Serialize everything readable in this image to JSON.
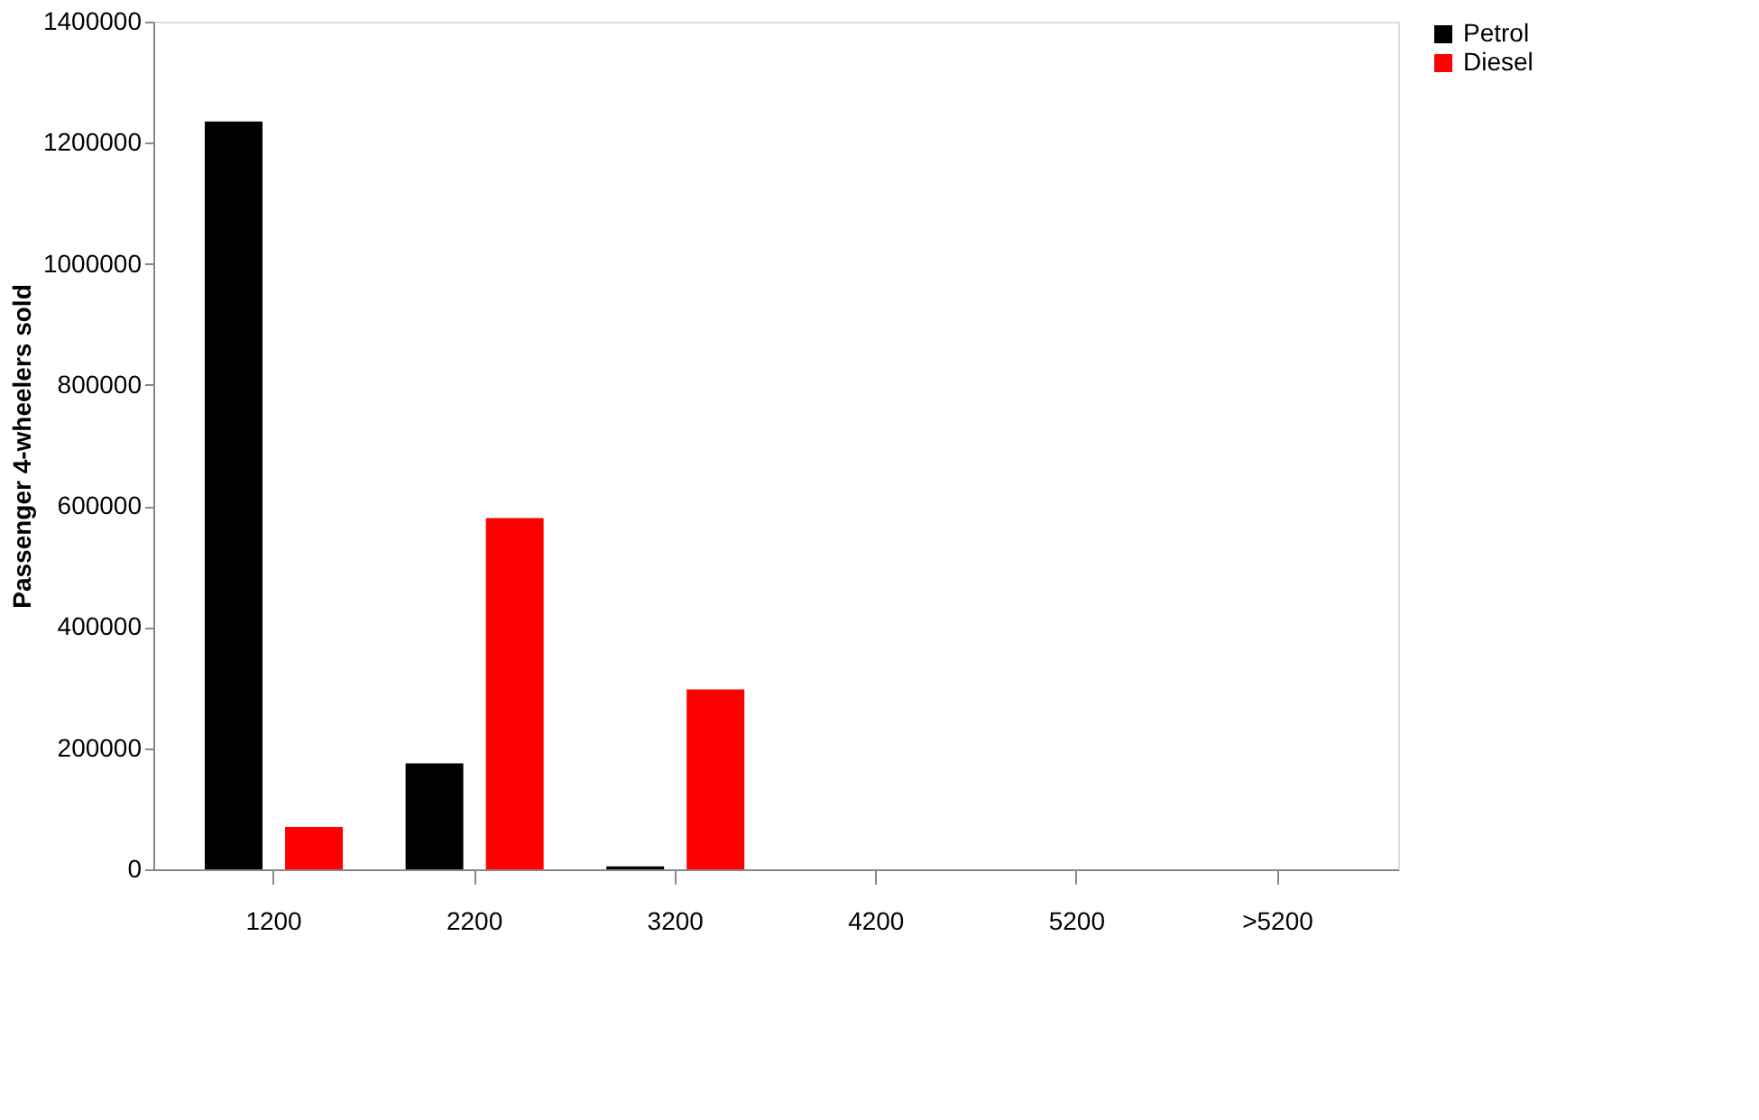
{
  "chart_data": {
    "type": "bar",
    "ylabel": "Passenger 4-wheelers sold",
    "categories": [
      "1200",
      "2200",
      "3200",
      "4200",
      "5200",
      ">5200"
    ],
    "series": [
      {
        "name": "Petrol",
        "color": "#000000",
        "values": [
          1235000,
          175000,
          5000,
          0,
          0,
          0
        ]
      },
      {
        "name": "Diesel",
        "color": "#ff0000",
        "values": [
          70000,
          580000,
          297000,
          0,
          0,
          0
        ]
      }
    ],
    "ylim": [
      0,
      1400000
    ],
    "yticks": [
      0,
      200000,
      400000,
      600000,
      800000,
      1000000,
      1200000,
      1400000
    ],
    "grid": false,
    "legend": "right"
  }
}
